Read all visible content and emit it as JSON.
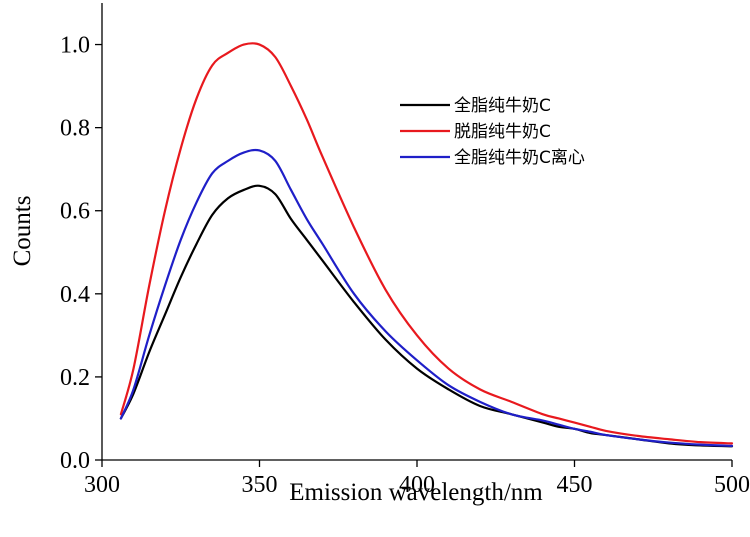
{
  "chart_data": {
    "type": "line",
    "title": "",
    "xlabel": "Emission wavelength/nm",
    "ylabel": "Counts",
    "xlim": [
      300,
      500
    ],
    "ylim": [
      0,
      1.1
    ],
    "x_ticks": [
      300,
      350,
      400,
      450,
      500
    ],
    "x_tick_labels": [
      "300",
      "350",
      "400",
      "450",
      "500"
    ],
    "y_ticks": [
      0,
      0.2,
      0.4,
      0.6,
      0.8,
      1.0
    ],
    "y_tick_labels": [
      "0.0",
      "0.2",
      "0.4",
      "0.6",
      "0.8",
      "1.0"
    ],
    "legend_position": "top-right",
    "series": [
      {
        "name": "全脂纯牛奶C",
        "color": "#000000",
        "x": [
          306,
          310,
          315,
          320,
          325,
          330,
          335,
          340,
          345,
          350,
          355,
          360,
          365,
          370,
          380,
          390,
          400,
          410,
          420,
          430,
          440,
          445,
          450,
          455,
          460,
          470,
          480,
          490,
          500
        ],
        "y": [
          0.1,
          0.16,
          0.26,
          0.35,
          0.44,
          0.52,
          0.59,
          0.63,
          0.65,
          0.66,
          0.64,
          0.58,
          0.53,
          0.48,
          0.38,
          0.29,
          0.22,
          0.17,
          0.13,
          0.11,
          0.09,
          0.08,
          0.075,
          0.065,
          0.06,
          0.05,
          0.04,
          0.035,
          0.033
        ]
      },
      {
        "name": "脱脂纯牛奶C",
        "color": "#e8191e",
        "x": [
          306,
          310,
          315,
          320,
          325,
          330,
          335,
          340,
          345,
          350,
          355,
          360,
          365,
          370,
          380,
          390,
          400,
          410,
          420,
          430,
          440,
          445,
          450,
          455,
          460,
          470,
          480,
          490,
          500
        ],
        "y": [
          0.11,
          0.22,
          0.42,
          0.6,
          0.75,
          0.87,
          0.95,
          0.98,
          1.0,
          1.0,
          0.97,
          0.9,
          0.82,
          0.73,
          0.56,
          0.41,
          0.3,
          0.22,
          0.17,
          0.14,
          0.11,
          0.1,
          0.09,
          0.08,
          0.07,
          0.058,
          0.05,
          0.043,
          0.04
        ]
      },
      {
        "name": "全脂纯牛奶C离心",
        "color": "#1f1fc8",
        "x": [
          306,
          310,
          315,
          320,
          325,
          330,
          335,
          340,
          345,
          350,
          355,
          360,
          365,
          370,
          380,
          390,
          400,
          410,
          420,
          430,
          440,
          445,
          450,
          455,
          460,
          470,
          480,
          490,
          500
        ],
        "y": [
          0.1,
          0.17,
          0.3,
          0.42,
          0.53,
          0.62,
          0.69,
          0.72,
          0.74,
          0.745,
          0.72,
          0.65,
          0.58,
          0.52,
          0.4,
          0.31,
          0.24,
          0.18,
          0.14,
          0.11,
          0.095,
          0.085,
          0.075,
          0.068,
          0.06,
          0.05,
          0.042,
          0.037,
          0.034
        ]
      }
    ]
  }
}
